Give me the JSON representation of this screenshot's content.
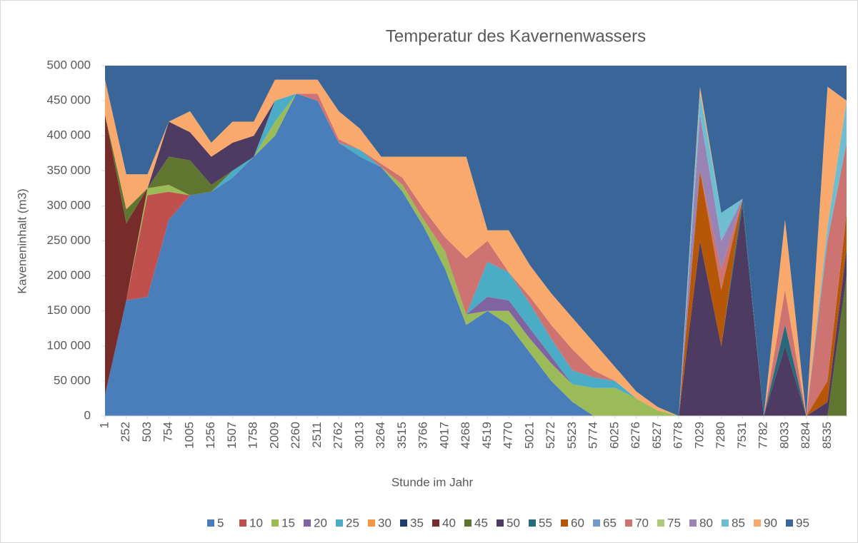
{
  "chart_data": {
    "type": "stacked_area",
    "title": "Temperatur des Kavernenwassers",
    "x_label": "Stunde im Jahr",
    "y_label": "Kaveneninhalt (m3)",
    "x": [
      1,
      252,
      503,
      754,
      1005,
      1256,
      1507,
      1758,
      2009,
      2260,
      2511,
      2762,
      3013,
      3264,
      3515,
      3766,
      4017,
      4268,
      4519,
      4770,
      5021,
      5272,
      5523,
      5774,
      6025,
      6276,
      6527,
      6778,
      7029,
      7280,
      7531,
      7782,
      8033,
      8284,
      8535,
      8760
    ],
    "xlim": [
      1,
      8760
    ],
    "xticks": [
      1,
      252,
      503,
      754,
      1005,
      1256,
      1507,
      1758,
      2009,
      2260,
      2511,
      2762,
      3013,
      3264,
      3515,
      3766,
      4017,
      4268,
      4519,
      4770,
      5021,
      5272,
      5523,
      5774,
      6025,
      6276,
      6527,
      6778,
      7029,
      7280,
      7531,
      7782,
      8033,
      8284,
      8535
    ],
    "ylim": [
      0,
      500000
    ],
    "yticks": [
      0,
      {
        "value": 50000,
        "label": "50 000"
      },
      {
        "value": 100000,
        "label": "100 000"
      },
      {
        "value": 150000,
        "label": "150 000"
      },
      {
        "value": 200000,
        "label": "200 000"
      },
      {
        "value": 250000,
        "label": "250 000"
      },
      {
        "value": 300000,
        "label": "300 000"
      },
      {
        "value": 350000,
        "label": "350 000"
      },
      {
        "value": 400000,
        "label": "400 000"
      },
      {
        "value": 450000,
        "label": "450 000"
      },
      {
        "value": 500000,
        "label": "500 000"
      }
    ],
    "legend": "bottom",
    "series": [
      {
        "name": "5",
        "color": "#4a7ebb",
        "values": [
          30000,
          165000,
          170000,
          280000,
          315000,
          320000,
          340000,
          370000,
          400000,
          460000,
          450000,
          390000,
          370000,
          355000,
          320000,
          270000,
          210000,
          130000,
          150000,
          130000,
          90000,
          50000,
          20000,
          0,
          0,
          0,
          0,
          0,
          0,
          0,
          0,
          0,
          0,
          0,
          0,
          0
        ]
      },
      {
        "name": "10",
        "color": "#c0504d",
        "values": [
          0,
          0,
          145000,
          40000,
          0,
          0,
          0,
          0,
          0,
          0,
          0,
          0,
          0,
          0,
          0,
          0,
          0,
          0,
          0,
          0,
          0,
          0,
          0,
          0,
          0,
          0,
          0,
          0,
          0,
          0,
          0,
          0,
          0,
          0,
          0,
          0
        ]
      },
      {
        "name": "15",
        "color": "#9bbb59",
        "values": [
          0,
          0,
          10000,
          10000,
          0,
          0,
          0,
          0,
          20000,
          0,
          0,
          0,
          0,
          0,
          10000,
          10000,
          25000,
          15000,
          0,
          20000,
          20000,
          25000,
          25000,
          40000,
          40000,
          25000,
          8000,
          0,
          0,
          0,
          0,
          0,
          0,
          0,
          0,
          0
        ]
      },
      {
        "name": "20",
        "color": "#8064a2",
        "values": [
          0,
          0,
          0,
          0,
          0,
          0,
          0,
          0,
          0,
          0,
          0,
          0,
          0,
          0,
          0,
          0,
          0,
          0,
          20000,
          15000,
          15000,
          10000,
          0,
          0,
          0,
          0,
          0,
          0,
          0,
          0,
          0,
          0,
          0,
          0,
          0,
          0
        ]
      },
      {
        "name": "25",
        "color": "#4bacc6",
        "values": [
          0,
          0,
          0,
          0,
          0,
          0,
          10000,
          0,
          30000,
          0,
          0,
          0,
          10000,
          0,
          0,
          0,
          0,
          0,
          50000,
          40000,
          35000,
          25000,
          20000,
          15000,
          10000,
          0,
          0,
          0,
          0,
          0,
          0,
          0,
          0,
          0,
          0,
          0
        ]
      },
      {
        "name": "30",
        "color": "#f79646",
        "values": [
          0,
          0,
          0,
          0,
          0,
          0,
          0,
          0,
          0,
          0,
          0,
          0,
          0,
          0,
          0,
          0,
          0,
          0,
          0,
          0,
          0,
          0,
          0,
          0,
          0,
          0,
          0,
          0,
          0,
          0,
          0,
          0,
          0,
          0,
          0,
          0
        ]
      },
      {
        "name": "35",
        "color": "#1f3e6e",
        "values": [
          0,
          0,
          0,
          0,
          0,
          0,
          0,
          0,
          0,
          0,
          0,
          0,
          0,
          0,
          0,
          0,
          0,
          0,
          0,
          0,
          0,
          0,
          0,
          0,
          0,
          0,
          0,
          0,
          0,
          0,
          0,
          0,
          0,
          0,
          0,
          0
        ]
      },
      {
        "name": "40",
        "color": "#772c2a",
        "values": [
          400000,
          110000,
          0,
          0,
          0,
          0,
          0,
          0,
          0,
          0,
          0,
          0,
          0,
          0,
          0,
          0,
          0,
          0,
          0,
          0,
          0,
          0,
          0,
          0,
          0,
          0,
          0,
          0,
          0,
          0,
          0,
          0,
          0,
          0,
          0,
          0
        ]
      },
      {
        "name": "45",
        "color": "#5f7530",
        "values": [
          0,
          20000,
          0,
          40000,
          50000,
          10000,
          0,
          0,
          0,
          0,
          0,
          0,
          0,
          0,
          0,
          0,
          0,
          0,
          0,
          0,
          0,
          0,
          0,
          0,
          0,
          0,
          0,
          0,
          0,
          0,
          0,
          0,
          0,
          0,
          0,
          200000
        ]
      },
      {
        "name": "50",
        "color": "#4d3b62",
        "values": [
          0,
          0,
          0,
          50000,
          40000,
          40000,
          40000,
          30000,
          0,
          0,
          0,
          0,
          0,
          0,
          0,
          0,
          0,
          0,
          0,
          0,
          0,
          0,
          0,
          0,
          0,
          0,
          0,
          0,
          250000,
          100000,
          300000,
          0,
          100000,
          0,
          20000,
          40000
        ]
      },
      {
        "name": "55",
        "color": "#276a7c",
        "values": [
          0,
          0,
          0,
          0,
          0,
          0,
          0,
          0,
          0,
          0,
          0,
          0,
          0,
          0,
          0,
          0,
          0,
          0,
          0,
          0,
          0,
          0,
          0,
          0,
          0,
          0,
          0,
          0,
          0,
          0,
          10000,
          0,
          30000,
          0,
          0,
          0
        ]
      },
      {
        "name": "60",
        "color": "#b65708",
        "values": [
          0,
          0,
          0,
          0,
          0,
          0,
          0,
          0,
          0,
          0,
          0,
          0,
          0,
          0,
          0,
          0,
          0,
          0,
          0,
          0,
          0,
          0,
          0,
          0,
          0,
          0,
          0,
          0,
          100000,
          80000,
          0,
          0,
          0,
          0,
          30000,
          50000
        ]
      },
      {
        "name": "65",
        "color": "#729aca",
        "values": [
          0,
          0,
          0,
          0,
          0,
          0,
          0,
          0,
          0,
          0,
          0,
          0,
          0,
          0,
          0,
          0,
          0,
          0,
          0,
          0,
          0,
          0,
          0,
          0,
          0,
          0,
          0,
          0,
          0,
          0,
          0,
          0,
          0,
          0,
          0,
          0
        ]
      },
      {
        "name": "70",
        "color": "#cd7371",
        "values": [
          0,
          0,
          0,
          0,
          0,
          0,
          0,
          0,
          0,
          0,
          10000,
          5000,
          0,
          5000,
          10000,
          15000,
          20000,
          80000,
          30000,
          0,
          10000,
          20000,
          30000,
          10000,
          0,
          0,
          0,
          0,
          0,
          30000,
          0,
          0,
          50000,
          0,
          200000,
          100000
        ]
      },
      {
        "name": "75",
        "color": "#afc97a",
        "values": [
          0,
          0,
          0,
          0,
          0,
          0,
          0,
          0,
          0,
          0,
          0,
          0,
          0,
          0,
          0,
          0,
          0,
          0,
          0,
          0,
          0,
          0,
          0,
          0,
          0,
          0,
          0,
          0,
          0,
          0,
          0,
          0,
          0,
          0,
          0,
          0
        ]
      },
      {
        "name": "80",
        "color": "#9983b5",
        "values": [
          0,
          0,
          0,
          0,
          0,
          0,
          0,
          0,
          0,
          0,
          0,
          0,
          0,
          0,
          0,
          0,
          0,
          0,
          0,
          0,
          0,
          0,
          0,
          0,
          0,
          0,
          0,
          0,
          80000,
          40000,
          0,
          0,
          0,
          0,
          0,
          0
        ]
      },
      {
        "name": "85",
        "color": "#6fbdd1",
        "values": [
          0,
          0,
          0,
          0,
          0,
          0,
          0,
          0,
          0,
          0,
          0,
          0,
          0,
          0,
          0,
          0,
          0,
          0,
          0,
          0,
          0,
          0,
          0,
          0,
          0,
          0,
          0,
          0,
          30000,
          40000,
          0,
          0,
          0,
          0,
          20000,
          60000
        ]
      },
      {
        "name": "90",
        "color": "#f9a96b",
        "values": [
          50000,
          50000,
          20000,
          0,
          30000,
          20000,
          30000,
          20000,
          30000,
          20000,
          20000,
          40000,
          30000,
          10000,
          30000,
          75000,
          115000,
          145000,
          15000,
          60000,
          45000,
          45000,
          45000,
          40000,
          20000,
          10000,
          5000,
          0,
          10000,
          0,
          0,
          0,
          100000,
          0,
          200000,
          0
        ]
      },
      {
        "name": "95",
        "color": "#3a6598",
        "values": [
          20000,
          155000,
          155000,
          80000,
          65000,
          110000,
          80000,
          80000,
          20000,
          20000,
          20000,
          65000,
          90000,
          130000,
          130000,
          130000,
          130000,
          130000,
          235000,
          235000,
          285000,
          325000,
          360000,
          395000,
          430000,
          465000,
          487000,
          500000,
          30000,
          210000,
          190000,
          500000,
          220000,
          500000,
          30000,
          50000
        ]
      }
    ]
  }
}
